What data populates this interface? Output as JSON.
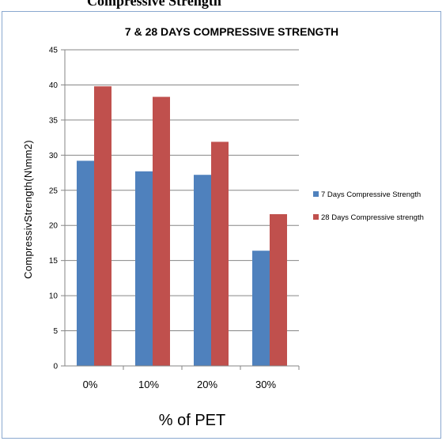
{
  "page": {
    "caption": "Compressive Strength"
  },
  "chart_data": {
    "type": "bar",
    "title": "7 & 28 DAYS COMPRESSIVE STRENGTH",
    "xlabel": "% of PET",
    "ylabel": "CompressivStrength(N\\mm2)",
    "categories": [
      "0%",
      "10%",
      "20%",
      "30%"
    ],
    "ylim": [
      0,
      45
    ],
    "yticks": [
      0,
      5,
      10,
      15,
      20,
      25,
      30,
      35,
      40,
      45
    ],
    "grid": true,
    "legend_position": "right",
    "series": [
      {
        "name": "7 Days Compressive Strength",
        "values": [
          29.2,
          27.7,
          27.2,
          16.4
        ],
        "color": "#4f81bd"
      },
      {
        "name": "28 Days Compressive strength",
        "values": [
          39.8,
          38.3,
          31.9,
          21.6
        ],
        "color": "#c0504d"
      }
    ],
    "colors": {
      "grid": "#868686",
      "axis": "#868686"
    }
  }
}
